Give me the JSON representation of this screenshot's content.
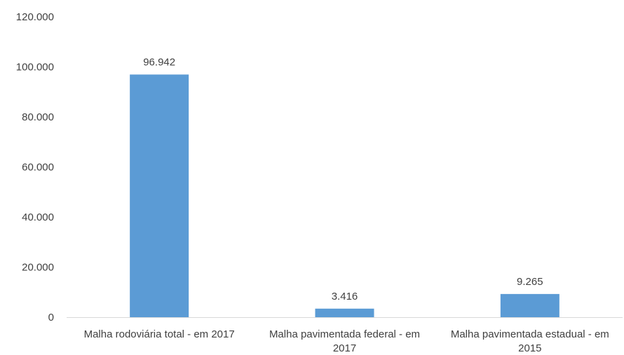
{
  "chart_data": {
    "type": "bar",
    "title": "",
    "xlabel": "",
    "ylabel": "",
    "categories": [
      [
        "Malha rodoviária total - em 2017"
      ],
      [
        "Malha pavimentada federal - em",
        "2017"
      ],
      [
        "Malha pavimentada estadual - em",
        "2015"
      ]
    ],
    "values": [
      96942,
      3416,
      9265
    ],
    "data_labels": [
      "96.942",
      "3.416",
      "9.265"
    ],
    "ylim": [
      0,
      120000
    ],
    "y_ticks": [
      0,
      20000,
      40000,
      60000,
      80000,
      100000,
      120000
    ],
    "y_tick_labels": [
      "0",
      "20.000",
      "40.000",
      "60.000",
      "80.000",
      "100.000",
      "120.000"
    ],
    "grid": false,
    "legend": "none",
    "bar_color": "#5B9BD5"
  }
}
